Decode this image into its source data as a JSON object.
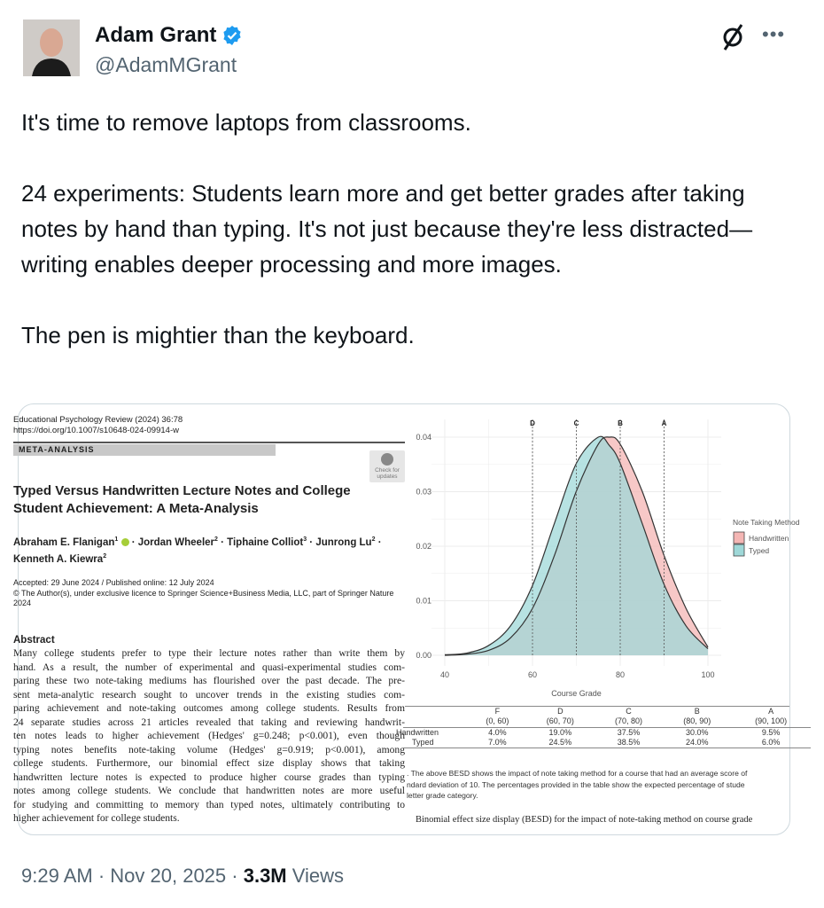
{
  "author": {
    "name": "Adam Grant",
    "handle": "@AdamMGrant",
    "verified": true,
    "verified_color": "#1d9bf0"
  },
  "actions": {
    "grok_icon": "grok-icon",
    "more_icon": "more-icon"
  },
  "tweet": {
    "paragraphs": [
      "It's time to remove laptops from classrooms.",
      "24 experiments: Students learn more and get better grades after taking notes by hand than typing. It's not just because they're less distracted—writing enables deeper processing and more images.",
      "The pen is mightier than the keyboard."
    ]
  },
  "paper": {
    "journal": "Educational Psychology Review (2024) 36:78",
    "doi": "https://doi.org/10.1007/s10648-024-09914-w",
    "section": "META-ANALYSIS",
    "check_updates": [
      "Check for",
      "updates"
    ],
    "title_lines": [
      "Typed Versus Handwritten Lecture Notes and College",
      "Student Achievement: A Meta-Analysis"
    ],
    "authors": [
      {
        "name": "Abraham E. Flanigan",
        "sup": "1"
      },
      {
        "name": "Jordan Wheeler",
        "sup": "2"
      },
      {
        "name": "Tiphaine Colliot",
        "sup": "3"
      },
      {
        "name": "Junrong Lu",
        "sup": "2"
      },
      {
        "name": "Kenneth A. Kiewra",
        "sup": "2"
      }
    ],
    "dates": "Accepted: 29 June 2024 / Published online: 12 July 2024",
    "copyright": "© The Author(s), under exclusive licence to Springer Science+Business Media, LLC, part of Springer Nature",
    "copyright_year": "2024",
    "abstract_heading": "Abstract",
    "abstract_lines": [
      "Many college students prefer to type their lecture notes rather than write them by",
      "hand. As a result, the number of experimental and quasi-experimental studies com-",
      "paring these two note-taking mediums has flourished over the past decade. The pre-",
      "sent meta-analytic research sought to uncover trends in the existing studies com-",
      "paring achievement and note-taking outcomes among college students. Results from",
      "24 separate studies across 21 articles revealed that taking and reviewing handwrit-",
      "ten notes leads to higher achievement (Hedges' g=0.248; p<0.001), even though",
      "typing notes benefits note-taking volume (Hedges' g=0.919; p<0.001), among",
      "college students. Furthermore, our binomial effect size display shows that taking",
      "handwritten lecture notes is expected to produce higher course grades than typing",
      "notes among college students. We conclude that handwritten notes are more useful",
      "for studying and committing to memory than typed notes, ultimately contributing to",
      "higher achievement for college students."
    ]
  },
  "chart_data": {
    "type": "area",
    "xlabel": "Course Grade",
    "ylabel": "",
    "xlim": [
      40,
      100
    ],
    "ylim": [
      0,
      0.04
    ],
    "x_ticks": [
      "40",
      "60",
      "80",
      "100"
    ],
    "y_ticks": [
      "0.00",
      "0.01",
      "0.02",
      "0.03",
      "0.04"
    ],
    "grid": true,
    "legend_title": "Note Taking Method",
    "legend_position": "right",
    "grade_lines": [
      {
        "label": "D",
        "x": 60
      },
      {
        "label": "C",
        "x": 70
      },
      {
        "label": "B",
        "x": 80
      },
      {
        "label": "A",
        "x": 90
      }
    ],
    "x": [
      40,
      45,
      50,
      55,
      60,
      65,
      70,
      75,
      77.5,
      80,
      85,
      90,
      95,
      100
    ],
    "series": [
      {
        "name": "Handwritten",
        "color": "#f4b6b4",
        "values": [
          0.0,
          0.0002,
          0.0009,
          0.0032,
          0.0086,
          0.0183,
          0.0301,
          0.0387,
          0.04,
          0.0387,
          0.0301,
          0.0183,
          0.0086,
          0.0015
        ]
      },
      {
        "name": "Typed",
        "color": "#9fd8d8",
        "values": [
          0.0001,
          0.0004,
          0.0018,
          0.0054,
          0.0128,
          0.0242,
          0.0352,
          0.04,
          0.0385,
          0.0352,
          0.0242,
          0.013,
          0.0054,
          0.0012
        ]
      }
    ],
    "table": {
      "grades": [
        "F",
        "D",
        "C",
        "B",
        "A"
      ],
      "ranges": [
        "(0, 60)",
        "(60, 70)",
        "(70, 80)",
        "(80, 90)",
        "(90, 100)"
      ],
      "rows": [
        {
          "label": "Handwritten",
          "values": [
            "4.0%",
            "19.0%",
            "37.5%",
            "30.0%",
            "9.5%"
          ]
        },
        {
          "label": "Typed",
          "values": [
            "7.0%",
            "24.5%",
            "38.5%",
            "24.0%",
            "6.0%"
          ]
        }
      ]
    },
    "caption_lines": [
      ". The above BESD shows the impact of note taking method for a course that had an average score of",
      "ndard deviation of 10.  The percentages provided in the table show the expected percentage of stude",
      "letter grade category."
    ],
    "title": "Binomial effect size display (BESD) for the impact of note-taking method on course grade"
  },
  "footer": {
    "time": "9:29 AM",
    "date": "Nov 20, 2025",
    "views_count": "3.3M",
    "views_label": "Views"
  }
}
